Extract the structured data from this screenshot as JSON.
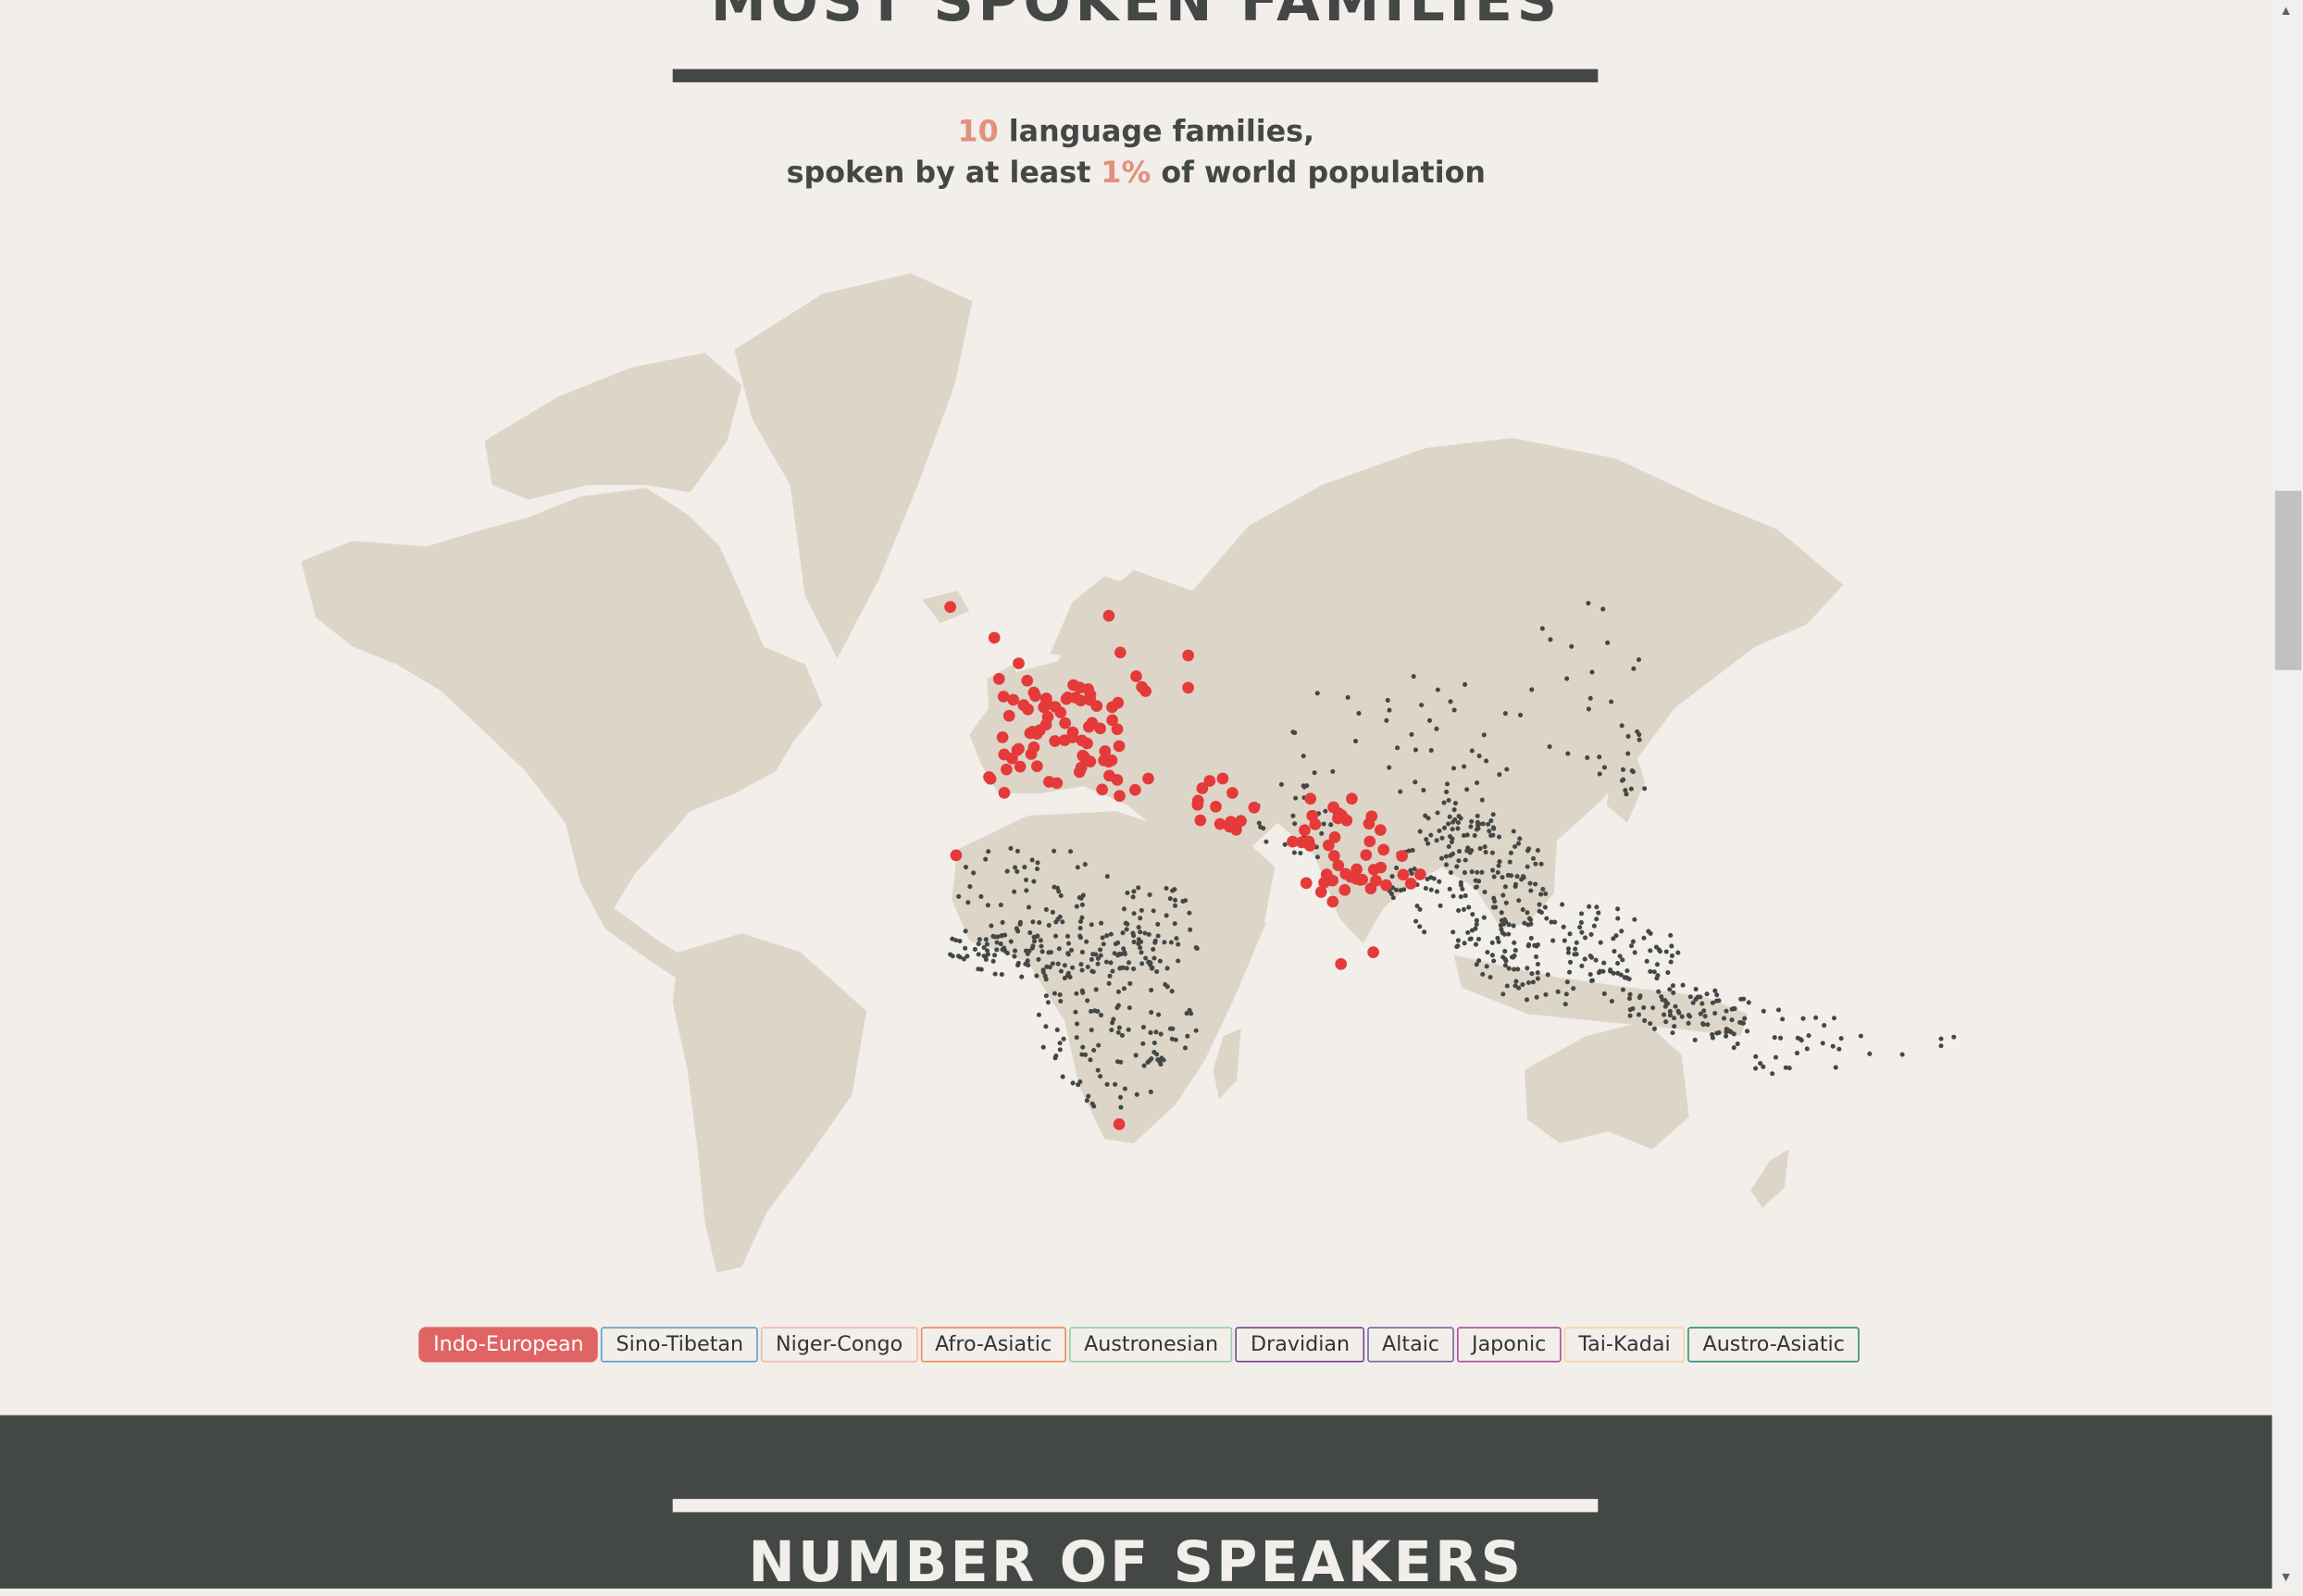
{
  "section_title": "MOST SPOKEN FAMILIES",
  "subtitle": {
    "count": "10",
    "line1_rest": " language families,",
    "line2_prefix": "spoken by at least ",
    "percent": "1%",
    "line2_suffix": " of world population"
  },
  "legend": [
    {
      "label": "Indo-European",
      "color": "#e06464",
      "active": true
    },
    {
      "label": "Sino-Tibetan",
      "color": "#5b9bd5",
      "active": false
    },
    {
      "label": "Niger-Congo",
      "color": "#f2b8b0",
      "active": false
    },
    {
      "label": "Afro-Asiatic",
      "color": "#f08a50",
      "active": false
    },
    {
      "label": "Austronesian",
      "color": "#8fd3a0",
      "active": false
    },
    {
      "label": "Dravidian",
      "color": "#7a3fa0",
      "active": false
    },
    {
      "label": "Altaic",
      "color": "#6a6aa8",
      "active": false
    },
    {
      "label": "Japonic",
      "color": "#b04a9a",
      "active": false
    },
    {
      "label": "Tai-Kadai",
      "color": "#f5d89a",
      "active": false
    },
    {
      "label": "Austro-Asiatic",
      "color": "#2e8a7a",
      "active": false
    }
  ],
  "map": {
    "land_color": "#ddd5c8",
    "highlight_color": "#e43a3a",
    "other_color": "#434846"
  },
  "next_section_title": "NUMBER OF SPEAKERS",
  "colors": {
    "background": "#f2eee9",
    "text": "#434846",
    "accent": "#e0917c",
    "dark_band": "#434846"
  }
}
